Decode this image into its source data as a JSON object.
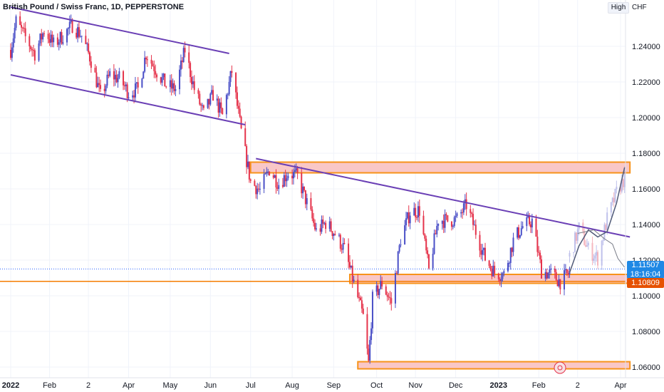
{
  "header": {
    "title": "British Pound / Swiss Franc, 1D, PEPPERSTONE",
    "high_label": "High",
    "currency": "CHF"
  },
  "price_tags": {
    "current_price": "1.11507",
    "countdown": "18:16:04",
    "line_price": "1.10809"
  },
  "colors": {
    "up": "#4a4fc7",
    "down": "#e5334b",
    "channel": "#6a3fb5",
    "zone_border": "#f7931a",
    "zone_fill": "#f9c7c7",
    "horizontal_line": "#f57c00",
    "dotted_line": "#2962ff",
    "forecast_line": "#505a78"
  },
  "chart_data": {
    "type": "candlestick",
    "title": "British Pound / Swiss Franc, 1D, PEPPERSTONE",
    "y_axis_label": "CHF",
    "ylim": [
      1.054,
      1.262
    ],
    "y_ticks": [
      "1.24000",
      "1.22000",
      "1.20000",
      "1.18000",
      "1.16000",
      "1.14000",
      "1.12000",
      "1.10000",
      "1.08000",
      "1.06000"
    ],
    "x_ticks": [
      {
        "label": "2022",
        "bold": true,
        "date": "2022-01-03"
      },
      {
        "label": "Feb",
        "bold": false,
        "date": "2022-02-01"
      },
      {
        "label": "2",
        "bold": false,
        "date": "2022-03-02"
      },
      {
        "label": "Apr",
        "bold": false,
        "date": "2022-04-01"
      },
      {
        "label": "May",
        "bold": false,
        "date": "2022-05-02"
      },
      {
        "label": "Jun",
        "bold": false,
        "date": "2022-06-01"
      },
      {
        "label": "Jul",
        "bold": false,
        "date": "2022-07-01"
      },
      {
        "label": "Aug",
        "bold": false,
        "date": "2022-08-01"
      },
      {
        "label": "Sep",
        "bold": false,
        "date": "2022-09-01"
      },
      {
        "label": "Oct",
        "bold": false,
        "date": "2022-10-03"
      },
      {
        "label": "Nov",
        "bold": false,
        "date": "2022-11-01"
      },
      {
        "label": "Dec",
        "bold": false,
        "date": "2022-12-01"
      },
      {
        "label": "2023",
        "bold": true,
        "date": "2023-01-02"
      },
      {
        "label": "Feb",
        "bold": false,
        "date": "2023-02-01"
      },
      {
        "label": "2",
        "bold": false,
        "date": "2023-03-02"
      },
      {
        "label": "Apr",
        "bold": false,
        "date": "2023-04-03"
      }
    ],
    "price_path": [
      [
        "2022-01-03",
        1.238
      ],
      [
        "2022-01-07",
        1.254
      ],
      [
        "2022-01-14",
        1.245
      ],
      [
        "2022-01-21",
        1.236
      ],
      [
        "2022-01-28",
        1.249
      ],
      [
        "2022-02-04",
        1.241
      ],
      [
        "2022-02-11",
        1.246
      ],
      [
        "2022-02-18",
        1.252
      ],
      [
        "2022-02-25",
        1.246
      ],
      [
        "2022-03-04",
        1.232
      ],
      [
        "2022-03-11",
        1.212
      ],
      [
        "2022-03-18",
        1.224
      ],
      [
        "2022-03-25",
        1.222
      ],
      [
        "2022-04-01",
        1.214
      ],
      [
        "2022-04-08",
        1.216
      ],
      [
        "2022-04-14",
        1.236
      ],
      [
        "2022-04-22",
        1.226
      ],
      [
        "2022-04-29",
        1.218
      ],
      [
        "2022-05-06",
        1.216
      ],
      [
        "2022-05-13",
        1.238
      ],
      [
        "2022-05-20",
        1.216
      ],
      [
        "2022-05-27",
        1.202
      ],
      [
        "2022-06-03",
        1.213
      ],
      [
        "2022-06-10",
        1.201
      ],
      [
        "2022-06-17",
        1.226
      ],
      [
        "2022-06-24",
        1.192
      ],
      [
        "2022-07-01",
        1.164
      ],
      [
        "2022-07-08",
        1.159
      ],
      [
        "2022-07-15",
        1.171
      ],
      [
        "2022-07-22",
        1.163
      ],
      [
        "2022-07-29",
        1.169
      ],
      [
        "2022-08-05",
        1.167
      ],
      [
        "2022-08-12",
        1.152
      ],
      [
        "2022-08-19",
        1.136
      ],
      [
        "2022-08-26",
        1.141
      ],
      [
        "2022-09-02",
        1.135
      ],
      [
        "2022-09-09",
        1.126
      ],
      [
        "2022-09-16",
        1.107
      ],
      [
        "2022-09-23",
        1.088
      ],
      [
        "2022-09-27",
        1.062
      ],
      [
        "2022-09-30",
        1.098
      ],
      [
        "2022-10-07",
        1.107
      ],
      [
        "2022-10-14",
        1.096
      ],
      [
        "2022-10-21",
        1.132
      ],
      [
        "2022-10-28",
        1.147
      ],
      [
        "2022-11-04",
        1.148
      ],
      [
        "2022-11-11",
        1.114
      ],
      [
        "2022-11-18",
        1.143
      ],
      [
        "2022-11-25",
        1.142
      ],
      [
        "2022-12-02",
        1.143
      ],
      [
        "2022-12-09",
        1.151
      ],
      [
        "2022-12-16",
        1.136
      ],
      [
        "2022-12-23",
        1.121
      ],
      [
        "2022-12-30",
        1.113
      ],
      [
        "2023-01-06",
        1.112
      ],
      [
        "2023-01-13",
        1.131
      ],
      [
        "2023-01-20",
        1.139
      ],
      [
        "2023-01-27",
        1.142
      ],
      [
        "2023-02-03",
        1.114
      ],
      [
        "2023-02-10",
        1.112
      ],
      [
        "2023-02-17",
        1.108
      ],
      [
        "2023-02-24",
        1.113
      ]
    ],
    "forecast_path": [
      [
        "2023-02-24",
        1.113
      ],
      [
        "2023-03-03",
        1.128
      ],
      [
        "2023-03-10",
        1.137
      ],
      [
        "2023-03-17",
        1.133
      ],
      [
        "2023-03-24",
        1.136
      ],
      [
        "2023-03-31",
        1.152
      ],
      [
        "2023-04-06",
        1.172
      ]
    ],
    "faded_candles_path": [
      [
        "2023-02-24",
        1.122
      ],
      [
        "2023-03-03",
        1.138
      ],
      [
        "2023-03-10",
        1.126
      ],
      [
        "2023-03-17",
        1.121
      ],
      [
        "2023-03-24",
        1.143
      ],
      [
        "2023-03-31",
        1.158
      ],
      [
        "2023-04-06",
        1.166
      ]
    ],
    "secondary_line": [
      [
        "2023-03-02",
        1.135
      ],
      [
        "2023-03-14",
        1.137
      ],
      [
        "2023-03-22",
        1.132
      ],
      [
        "2023-03-28",
        1.129
      ],
      [
        "2023-04-01",
        1.121
      ],
      [
        "2023-04-06",
        1.116
      ]
    ],
    "channel_lines": [
      {
        "from": [
          "2022-01-03",
          1.262
        ],
        "to": [
          "2022-06-15",
          1.236
        ]
      },
      {
        "from": [
          "2022-01-03",
          1.224
        ],
        "to": [
          "2022-06-27",
          1.196
        ]
      },
      {
        "from": [
          "2022-07-05",
          1.177
        ],
        "to": [
          "2023-04-10",
          1.133
        ]
      }
    ],
    "zones": [
      {
        "from": "2022-07-01",
        "to": "2023-04-10",
        "top": 1.175,
        "bottom": 1.169
      },
      {
        "from": "2022-09-13",
        "to": "2023-04-10",
        "top": 1.112,
        "bottom": 1.107
      },
      {
        "from": "2022-09-19",
        "to": "2023-04-10",
        "top": 1.063,
        "bottom": 1.059
      }
    ],
    "horizontal_lines": [
      {
        "price": 1.10809,
        "style": "solid"
      },
      {
        "price": 1.11507,
        "style": "dotted"
      }
    ]
  }
}
